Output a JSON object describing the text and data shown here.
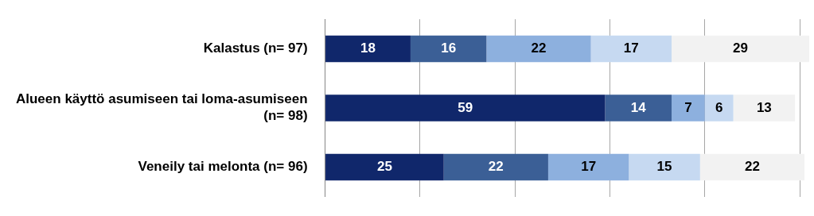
{
  "chart_data": {
    "type": "bar",
    "orientation": "horizontal",
    "stacked": true,
    "categories": [
      "Kalastus (n= 97)",
      "Alueen käyttö asumiseen tai loma-asumiseen (n= 98)",
      "Veneily tai melonta (n= 96)"
    ],
    "series": [
      {
        "color": "#10276b",
        "values": [
          18,
          59,
          25
        ]
      },
      {
        "color": "#3b5f96",
        "values": [
          16,
          14,
          22
        ]
      },
      {
        "color": "#8db0de",
        "values": [
          22,
          7,
          17
        ]
      },
      {
        "color": "#c6d9f1",
        "values": [
          17,
          6,
          15
        ]
      },
      {
        "color": "#f2f2f2",
        "values": [
          29,
          13,
          22
        ]
      }
    ],
    "xlim": [
      0,
      102
    ],
    "xticks": [
      {
        "value": 0,
        "label": null
      },
      {
        "value": 20,
        "label": null
      },
      {
        "value": 40,
        "label": null
      },
      {
        "value": 60,
        "label": null
      },
      {
        "value": 80,
        "label": null
      },
      {
        "value": 100,
        "label": null
      }
    ],
    "tick_labels": "y",
    "grid": "x",
    "legend": false,
    "data_labels": true
  }
}
